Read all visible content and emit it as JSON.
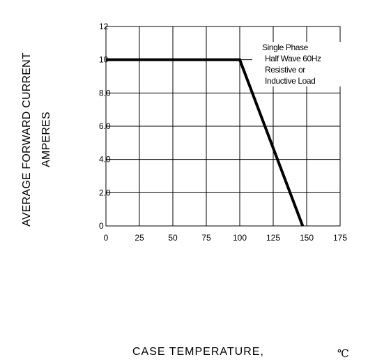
{
  "chart_data": {
    "type": "line",
    "ylabel_lines": [
      "AVERAGE FORWARD CURRENT",
      "AMPERES"
    ],
    "xlabel": "CASE TEMPERATURE,",
    "x_unit": "℃",
    "x_ticks": [
      "0",
      "25",
      "50",
      "75",
      "100",
      "125",
      "150",
      "175"
    ],
    "x_tick_values": [
      0,
      25,
      50,
      75,
      100,
      125,
      150,
      175
    ],
    "y_ticks": [
      "0",
      "2.0",
      "4.0",
      "6.0",
      "8.0",
      "10",
      "12"
    ],
    "y_tick_values": [
      0,
      2,
      4,
      6,
      8,
      10,
      12
    ],
    "xlim": [
      0,
      175
    ],
    "ylim": [
      0,
      12
    ],
    "grid": true,
    "annotation_lines": [
      "Single Phase",
      "Half Wave 60Hz",
      "Resistive or",
      "Inductive Load"
    ],
    "series": [
      {
        "x": [
          0,
          100,
          147
        ],
        "y": [
          10,
          10,
          0
        ]
      }
    ]
  }
}
